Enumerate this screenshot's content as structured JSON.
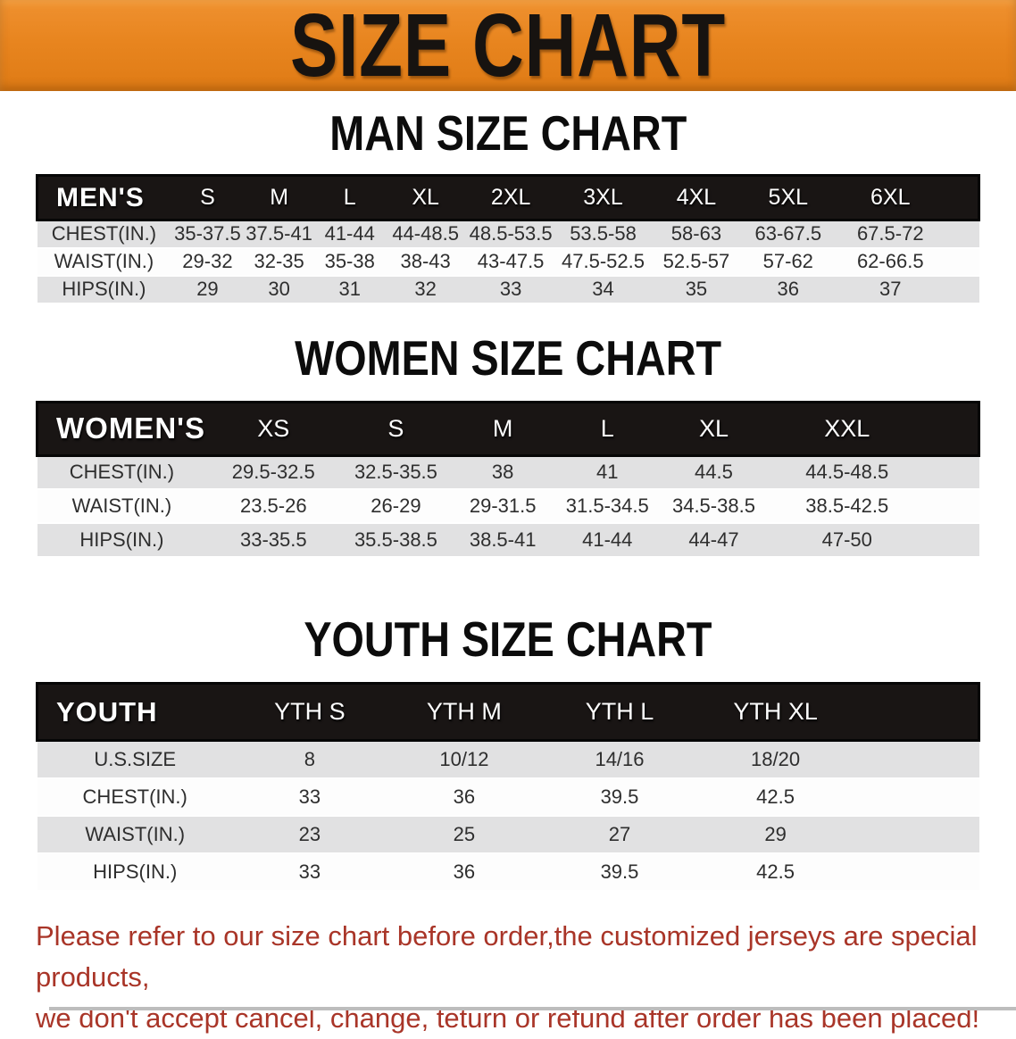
{
  "banner": {
    "title": "SIZE CHART"
  },
  "colors": {
    "banner_bg": "#E8851F",
    "header_band": "#191514",
    "row_stripe": "#E1E1E2",
    "disclaimer_text": "#A93528"
  },
  "men": {
    "heading": "MAN SIZE CHART",
    "corner_label": "MEN'S",
    "columns": [
      "S",
      "M",
      "L",
      "XL",
      "2XL",
      "3XL",
      "4XL",
      "5XL",
      "6XL"
    ],
    "rows": [
      {
        "label": "CHEST(IN.)",
        "values": [
          "35-37.5",
          "37.5-41",
          "41-44",
          "44-48.5",
          "48.5-53.5",
          "53.5-58",
          "58-63",
          "63-67.5",
          "67.5-72"
        ]
      },
      {
        "label": "WAIST(IN.)",
        "values": [
          "29-32",
          "32-35",
          "35-38",
          "38-43",
          "43-47.5",
          "47.5-52.5",
          "52.5-57",
          "57-62",
          "62-66.5"
        ]
      },
      {
        "label": "HIPS(IN.)",
        "values": [
          "29",
          "30",
          "31",
          "32",
          "33",
          "34",
          "35",
          "36",
          "37"
        ]
      }
    ]
  },
  "women": {
    "heading": "WOMEN SIZE CHART",
    "corner_label": "WOMEN'S",
    "columns": [
      "XS",
      "S",
      "M",
      "L",
      "XL",
      "XXL"
    ],
    "rows": [
      {
        "label": "CHEST(IN.)",
        "values": [
          "29.5-32.5",
          "32.5-35.5",
          "38",
          "41",
          "44.5",
          "44.5-48.5"
        ]
      },
      {
        "label": "WAIST(IN.)",
        "values": [
          "23.5-26",
          "26-29",
          "29-31.5",
          "31.5-34.5",
          "34.5-38.5",
          "38.5-42.5"
        ]
      },
      {
        "label": "HIPS(IN.)",
        "values": [
          "33-35.5",
          "35.5-38.5",
          "38.5-41",
          "41-44",
          "44-47",
          "47-50"
        ]
      }
    ]
  },
  "youth": {
    "heading": "YOUTH SIZE CHART",
    "corner_label": "YOUTH",
    "columns": [
      "YTH S",
      "YTH M",
      "YTH L",
      "YTH XL"
    ],
    "rows": [
      {
        "label": "U.S.SIZE",
        "values": [
          "8",
          "10/12",
          "14/16",
          "18/20"
        ]
      },
      {
        "label": "CHEST(IN.)",
        "values": [
          "33",
          "36",
          "39.5",
          "42.5"
        ]
      },
      {
        "label": "WAIST(IN.)",
        "values": [
          "23",
          "25",
          "27",
          "29"
        ]
      },
      {
        "label": "HIPS(IN.)",
        "values": [
          "33",
          "36",
          "39.5",
          "42.5"
        ]
      }
    ]
  },
  "disclaimer": {
    "line1": "Please refer to our size chart before order,the customized jerseys are special products,",
    "line2": "we don't accept cancel, change, teturn or refund after order has been placed!"
  }
}
